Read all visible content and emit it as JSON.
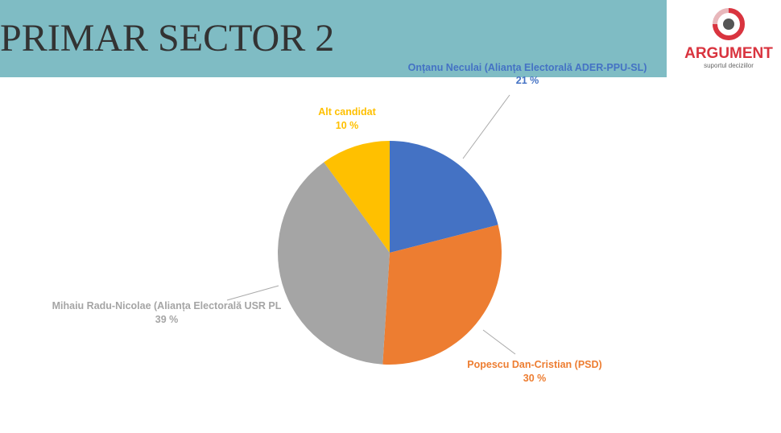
{
  "chart_data": {
    "type": "pie",
    "title": "PRIMAR SECTOR 2",
    "categories": [
      "Onțanu Neculai (Alianța Electorală ADER-PPU-SL)",
      "Popescu Dan-Cristian (PSD)",
      "Mihaiu Radu-Nicolae (Alianța Electorală USR PL",
      "Alt candidat"
    ],
    "values": [
      21,
      30,
      39,
      10
    ],
    "value_labels": [
      "21 %",
      "30 %",
      "39 %",
      "10 %"
    ],
    "colors": [
      "#4472c4",
      "#ed7d31",
      "#a5a5a5",
      "#ffc000"
    ]
  },
  "logo": {
    "name": "ARGUMENT",
    "tagline": "suportul deciziilor"
  }
}
